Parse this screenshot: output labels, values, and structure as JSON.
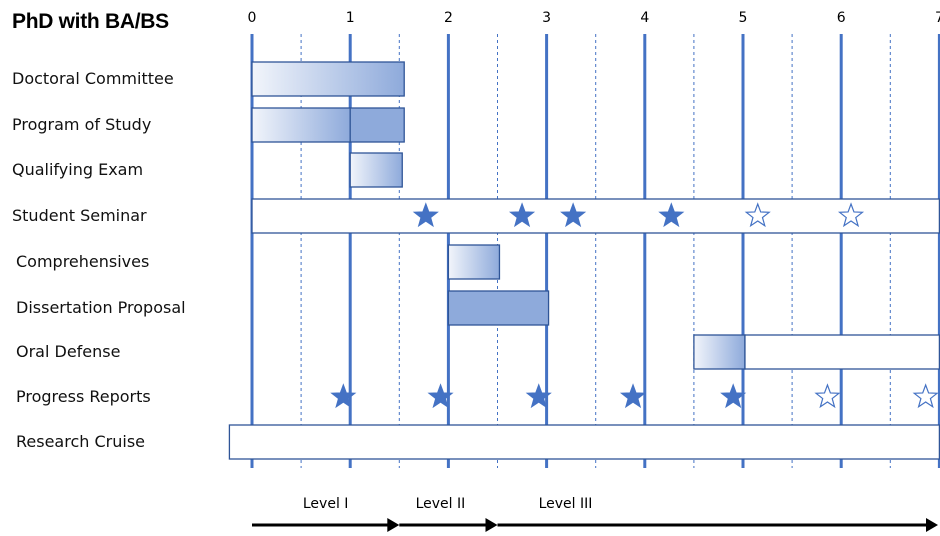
{
  "heading": "PhD with BA/BS",
  "colors": {
    "grid_major": "#4472C4",
    "grid_minor": "#4472C4",
    "bar_light": "#f2f5fb",
    "bar_dark": "#8eaadb",
    "bar_solid": "#8eaadb",
    "bar_stroke": "#2f5597",
    "star": "#4472C4"
  },
  "chart_data": {
    "type": "gantt",
    "xlim": [
      0,
      7
    ],
    "x_ticks": [
      "0",
      "1",
      "2",
      "3",
      "4",
      "5",
      "6",
      "7"
    ],
    "grid": "major lines at each year, dotted minor lines at half years",
    "rows": [
      {
        "label": "Doctoral Committee",
        "bars": [
          {
            "start": 0,
            "end": 1.55,
            "fill": "gradient"
          }
        ]
      },
      {
        "label": "Program of Study",
        "bars": [
          {
            "start": 0,
            "end": 1.0,
            "fill": "gradient"
          },
          {
            "start": 1.0,
            "end": 1.55,
            "fill": "solid"
          }
        ]
      },
      {
        "label": "Qualifying Exam",
        "bars": [
          {
            "start": 1.0,
            "end": 1.53,
            "fill": "gradient"
          }
        ]
      },
      {
        "label": "Student Seminar",
        "bars": [
          {
            "start": 0,
            "end": 7,
            "fill": "none"
          }
        ],
        "markers": [
          {
            "x": 1.77,
            "filled": true
          },
          {
            "x": 2.75,
            "filled": true
          },
          {
            "x": 3.27,
            "filled": true
          },
          {
            "x": 4.27,
            "filled": true
          },
          {
            "x": 5.15,
            "filled": false
          },
          {
            "x": 6.1,
            "filled": false
          }
        ]
      },
      {
        "label": "Comprehensives",
        "bars": [
          {
            "start": 2.0,
            "end": 2.52,
            "fill": "gradient"
          }
        ]
      },
      {
        "label": "Dissertation Proposal",
        "bars": [
          {
            "start": 2.0,
            "end": 3.02,
            "fill": "solid"
          }
        ]
      },
      {
        "label": "Oral Defense",
        "bars": [
          {
            "start": 4.5,
            "end": 5.02,
            "fill": "gradient"
          },
          {
            "start": 5.02,
            "end": 7,
            "fill": "none"
          }
        ]
      },
      {
        "label": "Progress Reports",
        "bars": [],
        "markers": [
          {
            "x": 0.93,
            "filled": true
          },
          {
            "x": 1.92,
            "filled": true
          },
          {
            "x": 2.92,
            "filled": true
          },
          {
            "x": 3.88,
            "filled": true
          },
          {
            "x": 4.9,
            "filled": true
          },
          {
            "x": 5.86,
            "filled": false
          },
          {
            "x": 6.86,
            "filled": false
          }
        ]
      },
      {
        "label": "Research Cruise",
        "bars": [
          {
            "start": -0.23,
            "end": 7,
            "fill": "none"
          }
        ]
      }
    ],
    "levels": [
      {
        "label": "Level I",
        "start": 0,
        "end": 1.5
      },
      {
        "label": "Level II",
        "start": 1.5,
        "end": 2.5
      },
      {
        "label": "Level III",
        "start": 2.5,
        "end": 7
      }
    ]
  }
}
